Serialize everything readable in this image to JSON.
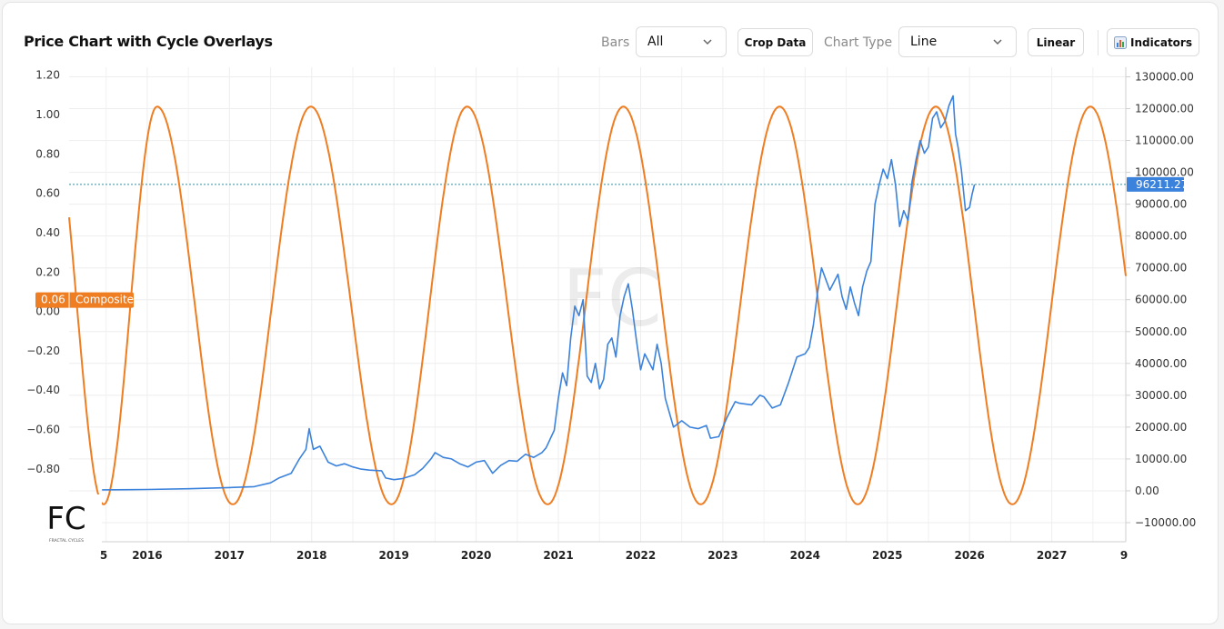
{
  "header": {
    "title": "Price Chart with Cycle Overlays",
    "bars_label": "Bars",
    "bars_value": "All",
    "crop_label": "Crop Data",
    "chart_type_label": "Chart Type",
    "chart_type_value": "Line",
    "scale_label": "Linear",
    "indicators_label": "Indicators",
    "indicators_icon": "bar-chart-icon"
  },
  "logo": {
    "text": "FC",
    "subtitle": "FRACTAL CYCLES"
  },
  "colors": {
    "price": "#3b82dc",
    "cycle": "#ef7d22",
    "composite_badge": "#ef7d22",
    "price_badge": "#3b82dc"
  },
  "chart_data": {
    "type": "line",
    "x_ticks": [
      "5",
      "2016",
      "2017",
      "2018",
      "2019",
      "2020",
      "2021",
      "2022",
      "2023",
      "2024",
      "2025",
      "2026",
      "2027",
      "9"
    ],
    "xlim": [
      2015.05,
      2027.9
    ],
    "left_axis": {
      "ticks": [
        "1.20",
        "1.00",
        "0.80",
        "0.60",
        "0.40",
        "0.20",
        "0.00",
        "−0.20",
        "−0.40",
        "−0.60",
        "−0.80"
      ],
      "ylim": [
        -1.17,
        1.24
      ]
    },
    "right_axis": {
      "ticks": [
        "130000.00",
        "120000.00",
        "110000.00",
        "100000.00",
        "90000.00",
        "80000.00",
        "70000.00",
        "60000.00",
        "50000.00",
        "40000.00",
        "30000.00",
        "20000.00",
        "10000.00",
        "0.00",
        "−10000.00"
      ],
      "ylim": [
        -16000,
        133000
      ]
    },
    "current_price_label": "96211.27",
    "current_price": 96211.27,
    "composite_label": "Composite",
    "composite_value": "0.06",
    "series": [
      {
        "name": "Composite",
        "axis": "left",
        "style": "cosine",
        "troughs": [
          2015.47,
          2017.04,
          2018.97,
          2020.87,
          2022.73,
          2024.64,
          2026.52
        ],
        "peaks": [
          2016.12,
          2017.99,
          2019.89,
          2021.79,
          2023.69,
          2025.59,
          2027.47
        ],
        "min": -0.98,
        "max": 1.04
      },
      {
        "name": "Price",
        "axis": "right",
        "points": [
          [
            2015.45,
            300
          ],
          [
            2015.8,
            350
          ],
          [
            2016.0,
            400
          ],
          [
            2016.5,
            650
          ],
          [
            2017.0,
            1000
          ],
          [
            2017.3,
            1300
          ],
          [
            2017.5,
            2500
          ],
          [
            2017.6,
            4000
          ],
          [
            2017.75,
            5500
          ],
          [
            2017.85,
            10000
          ],
          [
            2017.93,
            13000
          ],
          [
            2017.97,
            19500
          ],
          [
            2018.02,
            13000
          ],
          [
            2018.1,
            14000
          ],
          [
            2018.2,
            9000
          ],
          [
            2018.3,
            7800
          ],
          [
            2018.4,
            8500
          ],
          [
            2018.5,
            7500
          ],
          [
            2018.6,
            6800
          ],
          [
            2018.7,
            6500
          ],
          [
            2018.85,
            6300
          ],
          [
            2018.9,
            4000
          ],
          [
            2019.0,
            3500
          ],
          [
            2019.1,
            3800
          ],
          [
            2019.25,
            5000
          ],
          [
            2019.35,
            7000
          ],
          [
            2019.45,
            10000
          ],
          [
            2019.5,
            12000
          ],
          [
            2019.6,
            10500
          ],
          [
            2019.7,
            10000
          ],
          [
            2019.8,
            8500
          ],
          [
            2019.9,
            7500
          ],
          [
            2020.0,
            9000
          ],
          [
            2020.1,
            9500
          ],
          [
            2020.2,
            5500
          ],
          [
            2020.3,
            8000
          ],
          [
            2020.4,
            9500
          ],
          [
            2020.5,
            9300
          ],
          [
            2020.6,
            11500
          ],
          [
            2020.7,
            10500
          ],
          [
            2020.8,
            12000
          ],
          [
            2020.85,
            13500
          ],
          [
            2020.95,
            19000
          ],
          [
            2021.0,
            29000
          ],
          [
            2021.05,
            37000
          ],
          [
            2021.1,
            33000
          ],
          [
            2021.15,
            48000
          ],
          [
            2021.2,
            58000
          ],
          [
            2021.25,
            55000
          ],
          [
            2021.3,
            60000
          ],
          [
            2021.35,
            36000
          ],
          [
            2021.4,
            34000
          ],
          [
            2021.45,
            40000
          ],
          [
            2021.5,
            32000
          ],
          [
            2021.55,
            35000
          ],
          [
            2021.6,
            46000
          ],
          [
            2021.65,
            48000
          ],
          [
            2021.7,
            42000
          ],
          [
            2021.75,
            55000
          ],
          [
            2021.8,
            61000
          ],
          [
            2021.85,
            65000
          ],
          [
            2021.9,
            57000
          ],
          [
            2021.95,
            47000
          ],
          [
            2022.0,
            38000
          ],
          [
            2022.05,
            43000
          ],
          [
            2022.15,
            38000
          ],
          [
            2022.2,
            46000
          ],
          [
            2022.25,
            40000
          ],
          [
            2022.3,
            29000
          ],
          [
            2022.4,
            20000
          ],
          [
            2022.5,
            22000
          ],
          [
            2022.6,
            20000
          ],
          [
            2022.7,
            19500
          ],
          [
            2022.8,
            20500
          ],
          [
            2022.85,
            16500
          ],
          [
            2022.95,
            17000
          ],
          [
            2023.05,
            23000
          ],
          [
            2023.15,
            28000
          ],
          [
            2023.2,
            27500
          ],
          [
            2023.35,
            27000
          ],
          [
            2023.45,
            30000
          ],
          [
            2023.5,
            29500
          ],
          [
            2023.6,
            26000
          ],
          [
            2023.7,
            27000
          ],
          [
            2023.8,
            34000
          ],
          [
            2023.9,
            42000
          ],
          [
            2024.0,
            43000
          ],
          [
            2024.05,
            45000
          ],
          [
            2024.1,
            52000
          ],
          [
            2024.15,
            62000
          ],
          [
            2024.2,
            70000
          ],
          [
            2024.3,
            63000
          ],
          [
            2024.4,
            68000
          ],
          [
            2024.45,
            61000
          ],
          [
            2024.5,
            57000
          ],
          [
            2024.55,
            64000
          ],
          [
            2024.6,
            59000
          ],
          [
            2024.65,
            55000
          ],
          [
            2024.7,
            64000
          ],
          [
            2024.75,
            69000
          ],
          [
            2024.8,
            72000
          ],
          [
            2024.85,
            90000
          ],
          [
            2024.9,
            96000
          ],
          [
            2024.95,
            101000
          ],
          [
            2025.0,
            98000
          ],
          [
            2025.05,
            104000
          ],
          [
            2025.1,
            96000
          ],
          [
            2025.15,
            83000
          ],
          [
            2025.2,
            88000
          ],
          [
            2025.25,
            85000
          ],
          [
            2025.3,
            97000
          ],
          [
            2025.35,
            104000
          ],
          [
            2025.4,
            110000
          ],
          [
            2025.45,
            106000
          ],
          [
            2025.5,
            108000
          ],
          [
            2025.55,
            117000
          ],
          [
            2025.6,
            119000
          ],
          [
            2025.65,
            114000
          ],
          [
            2025.7,
            116000
          ],
          [
            2025.75,
            121000
          ],
          [
            2025.8,
            124000
          ],
          [
            2025.83,
            112000
          ],
          [
            2025.86,
            108000
          ],
          [
            2025.9,
            101000
          ],
          [
            2025.95,
            88000
          ],
          [
            2026.0,
            89000
          ],
          [
            2026.03,
            93000
          ],
          [
            2026.06,
            96211
          ]
        ]
      }
    ],
    "grid": true,
    "legend": "none"
  }
}
